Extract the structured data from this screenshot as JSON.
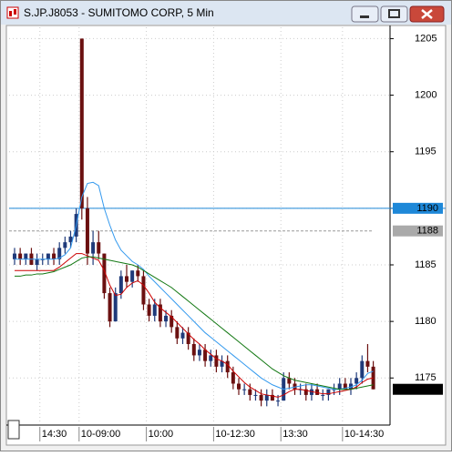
{
  "window": {
    "title": "S.JP.J8053 - SUMITOMO CORP, 5 Min"
  },
  "chart_data": {
    "type": "candlestick",
    "categories": [
      null,
      null,
      null,
      null,
      null,
      "14:30",
      null,
      null,
      null,
      null,
      null,
      null,
      "10-09:00",
      null,
      null,
      null,
      null,
      null,
      null,
      null,
      null,
      null,
      null,
      null,
      "10:00",
      null,
      null,
      null,
      null,
      null,
      null,
      null,
      null,
      null,
      null,
      null,
      "10-12:30",
      null,
      null,
      null,
      null,
      null,
      null,
      null,
      null,
      null,
      null,
      null,
      "13:30",
      null,
      null,
      null,
      null,
      null,
      null,
      null,
      null,
      null,
      null,
      "10-14:30",
      null,
      null,
      null,
      null,
      null
    ],
    "open": [
      1185.5,
      1186,
      1185.5,
      1186,
      1185,
      1185.5,
      1185.5,
      1186,
      1185.5,
      1186.5,
      1187,
      1187.5,
      1205,
      1190,
      1186,
      1187,
      1186,
      1182.5,
      1180,
      1182.5,
      1184,
      1183.5,
      1184.5,
      1184,
      1181.5,
      1180.5,
      1181.5,
      1180,
      1180.5,
      1179.5,
      1178.5,
      1179,
      1178,
      1177,
      1177.5,
      1176.5,
      1177,
      1176,
      1176.5,
      1175.5,
      1174.5,
      1174,
      1174,
      1173.5,
      1173.5,
      1173,
      1173.5,
      1173,
      1173,
      1175,
      1174.5,
      1174,
      1174,
      1173.5,
      1174,
      1173.5,
      1173.5,
      1174,
      1174,
      1174.5,
      1174,
      1174.5,
      1175,
      1176.5,
      1176
    ],
    "high": [
      1186.5,
      1186.5,
      1186,
      1186.5,
      1186,
      1186,
      1186,
      1186.5,
      1187,
      1187.5,
      1188,
      1190,
      1205,
      1191,
      1188,
      1188,
      1186,
      1183,
      1183,
      1184.5,
      1185,
      1184.5,
      1185,
      1184.5,
      1182,
      1182,
      1182,
      1181,
      1181,
      1180,
      1179.5,
      1179.5,
      1178.5,
      1178,
      1178,
      1177.5,
      1177.5,
      1177,
      1177,
      1176,
      1175,
      1174.5,
      1174.5,
      1174,
      1174,
      1174,
      1174,
      1173.5,
      1175.5,
      1175.5,
      1175,
      1174.5,
      1174.5,
      1174.5,
      1174.5,
      1174,
      1174,
      1174.5,
      1175,
      1175,
      1175,
      1175.5,
      1177,
      1178,
      1176.5
    ],
    "low": [
      1185,
      1185,
      1185,
      1185,
      1184.5,
      1185,
      1185,
      1185,
      1185,
      1186,
      1186.5,
      1187,
      1189,
      1185,
      1185,
      1185.5,
      1182,
      1179.5,
      1180,
      1182,
      1183,
      1183,
      1183.5,
      1181,
      1180,
      1180,
      1179.5,
      1179.5,
      1179,
      1178,
      1178,
      1177.5,
      1176.5,
      1176.5,
      1176,
      1176,
      1175.5,
      1175.5,
      1175,
      1174,
      1173.5,
      1173.5,
      1173,
      1173,
      1172.5,
      1172.5,
      1173,
      1172.5,
      1173,
      1174,
      1173.5,
      1173.5,
      1173,
      1173,
      1173.5,
      1173,
      1173,
      1173.5,
      1173.5,
      1174,
      1173.5,
      1174,
      1174.5,
      1175.5,
      1174
    ],
    "close": [
      1186,
      1185.5,
      1186,
      1185,
      1185.5,
      1185.5,
      1186,
      1185.5,
      1186.5,
      1187,
      1187.5,
      1189.5,
      1190,
      1186,
      1187,
      1186,
      1182.5,
      1180,
      1182.5,
      1184,
      1183.5,
      1184.5,
      1184,
      1181.5,
      1180.5,
      1181.5,
      1180,
      1180.5,
      1179.5,
      1178.5,
      1179,
      1178,
      1177,
      1177.5,
      1176.5,
      1177,
      1176,
      1176.5,
      1175.5,
      1174.5,
      1174,
      1174,
      1173.5,
      1173.5,
      1173,
      1173.5,
      1173,
      1173,
      1175,
      1174.5,
      1174,
      1174,
      1173.5,
      1174,
      1173.5,
      1173.5,
      1174,
      1174,
      1174.5,
      1174,
      1174.5,
      1175,
      1176.5,
      1176,
      1174
    ],
    "up_color": "#1f3a7a",
    "down_color": "#6b1010",
    "lines": [
      {
        "color": "#cc0000",
        "values": [
          1184.5,
          1184.5,
          1184.5,
          1184.5,
          1184.5,
          1184.5,
          1184.5,
          1184.5,
          1184.8,
          1185.2,
          1185.6,
          1186,
          1186,
          1185.8,
          1185.6,
          1185.4,
          1184.5,
          1183.2,
          1182.3,
          1182.4,
          1183,
          1183.4,
          1183.6,
          1183.2,
          1182.5,
          1181.7,
          1181.2,
          1180.8,
          1180.4,
          1179.9,
          1179.4,
          1178.9,
          1178.4,
          1178,
          1177.5,
          1177.1,
          1176.7,
          1176.5,
          1176.2,
          1175.6,
          1175.1,
          1174.6,
          1174.2,
          1173.9,
          1173.6,
          1173.5,
          1173.4,
          1173.3,
          1173.5,
          1173.8,
          1174,
          1174,
          1173.9,
          1173.8,
          1173.7,
          1173.6,
          1173.6,
          1173.7,
          1173.8,
          1173.9,
          1174,
          1174.2,
          1174.6,
          1174.9,
          1175
        ]
      },
      {
        "color": "#3399ee",
        "values": [
          1185.5,
          1185.5,
          1185.5,
          1185.5,
          1185.5,
          1185.5,
          1185.5,
          1185.5,
          1185.6,
          1185.9,
          1186.5,
          1188.5,
          1191,
          1192.2,
          1192.3,
          1192,
          1190,
          1188.5,
          1187.2,
          1186.3,
          1185.8,
          1185.3,
          1185,
          1184.6,
          1184,
          1183.5,
          1183,
          1182.5,
          1182,
          1181.5,
          1181,
          1180.5,
          1180,
          1179.5,
          1179,
          1178.6,
          1178.2,
          1177.8,
          1177.4,
          1177,
          1176.6,
          1176.2,
          1175.8,
          1175.4,
          1175,
          1174.7,
          1174.4,
          1174.2,
          1174,
          1174.1,
          1174.2,
          1174.3,
          1174.4,
          1174.4,
          1174.3,
          1174.2,
          1174.1,
          1174,
          1174,
          1174.1,
          1174.2,
          1174.4,
          1174.8,
          1175.4,
          1175.6
        ]
      },
      {
        "color": "#117711",
        "values": [
          1184,
          1184,
          1184.1,
          1184.1,
          1184.2,
          1184.2,
          1184.3,
          1184.4,
          1184.6,
          1184.8,
          1185,
          1185.3,
          1185.6,
          1185.7,
          1185.7,
          1185.6,
          1185.5,
          1185.4,
          1185.3,
          1185.2,
          1185.1,
          1185,
          1184.8,
          1184.5,
          1184.2,
          1183.9,
          1183.6,
          1183.3,
          1183,
          1182.6,
          1182.2,
          1181.8,
          1181.4,
          1181,
          1180.6,
          1180.2,
          1179.8,
          1179.4,
          1179,
          1178.6,
          1178.2,
          1177.8,
          1177.4,
          1177,
          1176.6,
          1176.2,
          1175.8,
          1175.5,
          1175.2,
          1175,
          1174.8,
          1174.7,
          1174.6,
          1174.5,
          1174.4,
          1174.3,
          1174.2,
          1174.1,
          1174,
          1174,
          1174,
          1174.1,
          1174.2,
          1174.3,
          1174.4
        ]
      }
    ],
    "price_lines": [
      {
        "value": 1190,
        "color": "#1e88d8",
        "label_bg": "#1e88d8",
        "label_color": "#ffffff",
        "dashed": false
      },
      {
        "value": 1188,
        "color": "#999999",
        "label_bg": "#aaaaaa",
        "label_color": "#000000",
        "dashed": true
      },
      {
        "value": 1174,
        "color": null,
        "label_bg": "#000000",
        "label_color": "#ffffff",
        "dashed": false
      }
    ],
    "ylim": [
      1171,
      1206
    ],
    "yticks": [
      1175,
      1180,
      1185,
      1190,
      1195,
      1200,
      1205
    ],
    "grid": true
  }
}
